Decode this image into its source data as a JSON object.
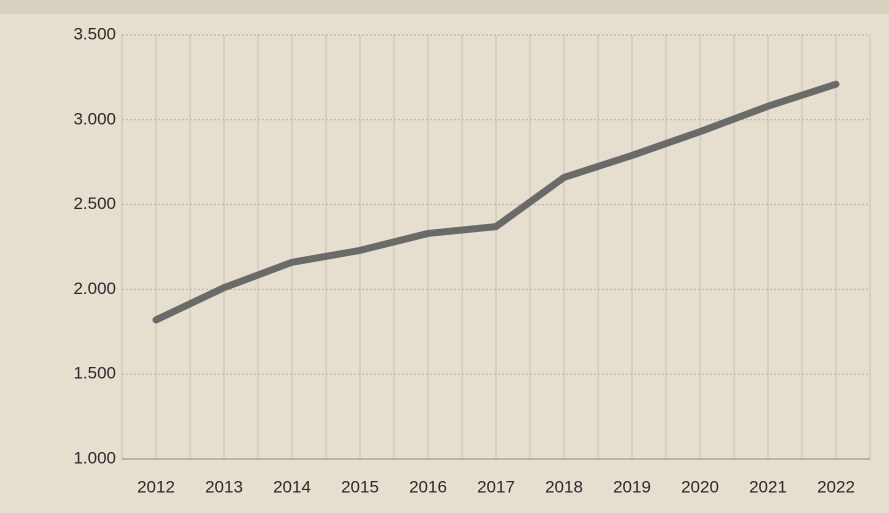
{
  "chart_data": {
    "type": "line",
    "categories": [
      "2012",
      "2013",
      "2014",
      "2015",
      "2016",
      "2017",
      "2018",
      "2019",
      "2020",
      "2021",
      "2022"
    ],
    "series": [
      {
        "color": "#6a6a68",
        "values": [
          1820,
          2010,
          2160,
          2230,
          2330,
          2370,
          2660,
          2790,
          2930,
          3080,
          3210
        ]
      }
    ],
    "ylim": [
      1000,
      3500
    ],
    "yticks": [
      {
        "value": 1000,
        "label": "1.000"
      },
      {
        "value": 1500,
        "label": "1.500"
      },
      {
        "value": 2000,
        "label": "2.000"
      },
      {
        "value": 2500,
        "label": "2.500"
      },
      {
        "value": 3000,
        "label": "3.000"
      },
      {
        "value": 3500,
        "label": "3.500"
      }
    ],
    "grid": true
  }
}
